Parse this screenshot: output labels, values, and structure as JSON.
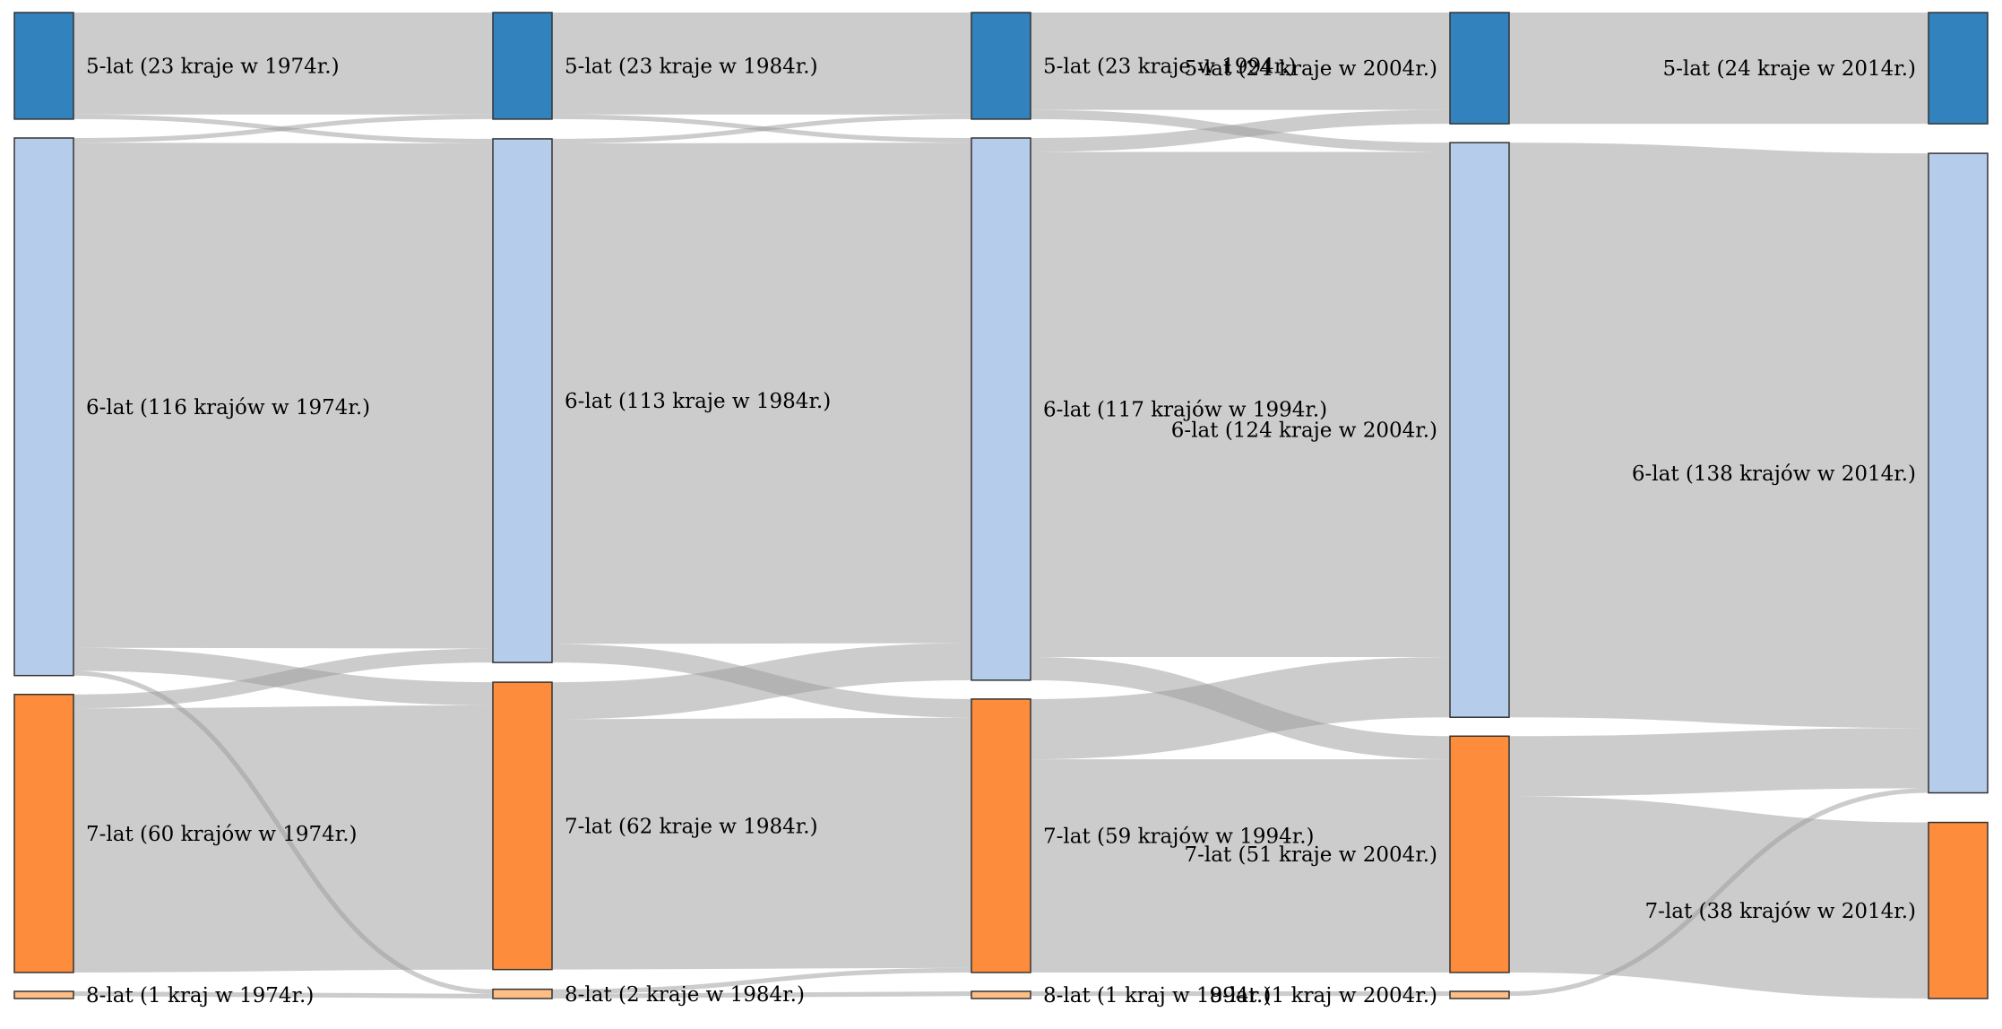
{
  "chart_data": {
    "type": "sankey",
    "title": "",
    "colors": {
      "link": "#999999",
      "node_5": "#3182bd",
      "node_6": "#b6cceb",
      "node_7": "#fd8d3c",
      "node_8": "#fdbe85",
      "stroke": "#333333"
    },
    "years": [
      "1974",
      "1984",
      "1994",
      "2004",
      "2014"
    ],
    "nodes": [
      {
        "id": "5-1974",
        "col": 0,
        "group": 5,
        "value": 23,
        "label": "5-lat (23 kraje w 1974r.)"
      },
      {
        "id": "6-1974",
        "col": 0,
        "group": 6,
        "value": 116,
        "label": "6-lat (116 krajów w 1974r.)"
      },
      {
        "id": "7-1974",
        "col": 0,
        "group": 7,
        "value": 60,
        "label": "7-lat (60 krajów w 1974r.)"
      },
      {
        "id": "8-1974",
        "col": 0,
        "group": 8,
        "value": 1,
        "label": "8-lat (1 kraj w 1974r.)"
      },
      {
        "id": "5-1984",
        "col": 1,
        "group": 5,
        "value": 23,
        "label": "5-lat (23 kraje w 1984r.)"
      },
      {
        "id": "6-1984",
        "col": 1,
        "group": 6,
        "value": 113,
        "label": "6-lat (113 kraje w 1984r.)"
      },
      {
        "id": "7-1984",
        "col": 1,
        "group": 7,
        "value": 62,
        "label": "7-lat (62 kraje w 1984r.)"
      },
      {
        "id": "8-1984",
        "col": 1,
        "group": 8,
        "value": 2,
        "label": "8-lat (2 kraje w 1984r.)"
      },
      {
        "id": "5-1994",
        "col": 2,
        "group": 5,
        "value": 23,
        "label": "5-lat (23 kraje w 1994r.)"
      },
      {
        "id": "6-1994",
        "col": 2,
        "group": 6,
        "value": 117,
        "label": "6-lat (117 krajów w 1994r.)"
      },
      {
        "id": "7-1994",
        "col": 2,
        "group": 7,
        "value": 59,
        "label": "7-lat (59 krajów w 1994r.)"
      },
      {
        "id": "8-1994",
        "col": 2,
        "group": 8,
        "value": 1,
        "label": "8-lat (1 kraj w 1994r.)"
      },
      {
        "id": "5-2004",
        "col": 3,
        "group": 5,
        "value": 24,
        "label": "5-lat (24 kraje w 2004r.)"
      },
      {
        "id": "6-2004",
        "col": 3,
        "group": 6,
        "value": 124,
        "label": "6-lat (124 kraje w 2004r.)"
      },
      {
        "id": "7-2004",
        "col": 3,
        "group": 7,
        "value": 51,
        "label": "7-lat (51 kraje w 2004r.)"
      },
      {
        "id": "8-2004",
        "col": 3,
        "group": 8,
        "value": 1,
        "label": "8-lat (1 kraj w 2004r.)"
      },
      {
        "id": "5-2014",
        "col": 4,
        "group": 5,
        "value": 24,
        "label": "5-lat (24 kraje w 2014r.)"
      },
      {
        "id": "6-2014",
        "col": 4,
        "group": 6,
        "value": 138,
        "label": "6-lat (138 krajów w 2014r.)"
      },
      {
        "id": "7-2014",
        "col": 4,
        "group": 7,
        "value": 38,
        "label": "7-lat (38 krajów w 2014r.)"
      }
    ],
    "links": [
      {
        "source": "5-1974",
        "target": "5-1984",
        "value": 22
      },
      {
        "source": "5-1974",
        "target": "6-1984",
        "value": 1
      },
      {
        "source": "6-1974",
        "target": "5-1984",
        "value": 1
      },
      {
        "source": "6-1974",
        "target": "6-1984",
        "value": 109
      },
      {
        "source": "6-1974",
        "target": "7-1984",
        "value": 5
      },
      {
        "source": "6-1974",
        "target": "8-1984",
        "value": 1
      },
      {
        "source": "7-1974",
        "target": "6-1984",
        "value": 3
      },
      {
        "source": "7-1974",
        "target": "7-1984",
        "value": 57
      },
      {
        "source": "8-1974",
        "target": "8-1984",
        "value": 1
      },
      {
        "source": "5-1984",
        "target": "5-1994",
        "value": 22
      },
      {
        "source": "5-1984",
        "target": "6-1994",
        "value": 1
      },
      {
        "source": "6-1984",
        "target": "5-1994",
        "value": 1
      },
      {
        "source": "6-1984",
        "target": "6-1994",
        "value": 108
      },
      {
        "source": "6-1984",
        "target": "7-1994",
        "value": 4
      },
      {
        "source": "7-1984",
        "target": "6-1994",
        "value": 8
      },
      {
        "source": "7-1984",
        "target": "7-1994",
        "value": 54
      },
      {
        "source": "8-1984",
        "target": "7-1994",
        "value": 1
      },
      {
        "source": "8-1984",
        "target": "8-1994",
        "value": 1
      },
      {
        "source": "5-1994",
        "target": "5-2004",
        "value": 21
      },
      {
        "source": "5-1994",
        "target": "6-2004",
        "value": 2
      },
      {
        "source": "6-1994",
        "target": "5-2004",
        "value": 3
      },
      {
        "source": "6-1994",
        "target": "6-2004",
        "value": 109
      },
      {
        "source": "6-1994",
        "target": "7-2004",
        "value": 5
      },
      {
        "source": "7-1994",
        "target": "6-2004",
        "value": 13
      },
      {
        "source": "7-1994",
        "target": "7-2004",
        "value": 46
      },
      {
        "source": "8-1994",
        "target": "8-2004",
        "value": 1
      },
      {
        "source": "5-2004",
        "target": "5-2014",
        "value": 24
      },
      {
        "source": "6-2004",
        "target": "6-2014",
        "value": 124
      },
      {
        "source": "7-2004",
        "target": "6-2014",
        "value": 13
      },
      {
        "source": "7-2004",
        "target": "7-2014",
        "value": 38
      },
      {
        "source": "8-2004",
        "target": "6-2014",
        "value": 1
      }
    ]
  }
}
